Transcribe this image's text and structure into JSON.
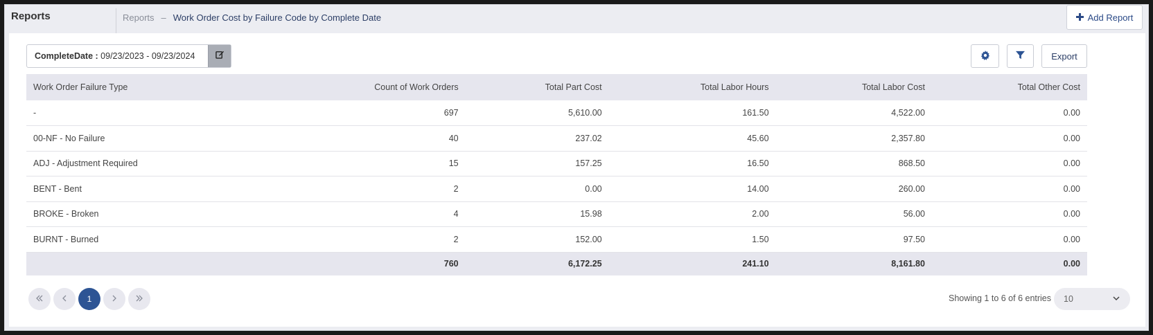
{
  "header": {
    "app_title": "Reports",
    "breadcrumb_root": "Reports",
    "breadcrumb_sep": "–",
    "breadcrumb_current": "Work Order Cost by Failure Code by Complete Date",
    "add_report_label": "Add Report",
    "add_icon": "plus-icon"
  },
  "toolbar": {
    "date_key": "CompleteDate :",
    "date_range": "09/23/2023 - 09/23/2024",
    "edit_icon": "edit-icon",
    "settings_icon": "gear-icon",
    "filter_icon": "filter-icon",
    "export_label": "Export"
  },
  "table": {
    "headers": [
      "Work Order Failure Type",
      "Count of Work Orders",
      "Total Part Cost",
      "Total Labor Hours",
      "Total Labor Cost",
      "Total Other Cost"
    ],
    "rows": [
      [
        "-",
        "697",
        "5,610.00",
        "161.50",
        "4,522.00",
        "0.00"
      ],
      [
        "00-NF - No Failure",
        "40",
        "237.02",
        "45.60",
        "2,357.80",
        "0.00"
      ],
      [
        "ADJ - Adjustment Required",
        "15",
        "157.25",
        "16.50",
        "868.50",
        "0.00"
      ],
      [
        "BENT - Bent",
        "2",
        "0.00",
        "14.00",
        "260.00",
        "0.00"
      ],
      [
        "BROKE - Broken",
        "4",
        "15.98",
        "2.00",
        "56.00",
        "0.00"
      ],
      [
        "BURNT - Burned",
        "2",
        "152.00",
        "1.50",
        "97.50",
        "0.00"
      ]
    ],
    "totals": [
      "",
      "760",
      "6,172.25",
      "241.10",
      "8,161.80",
      "0.00"
    ]
  },
  "pagination": {
    "current_page": "1",
    "entries_text": "Showing 1 to 6 of 6 entries",
    "page_size": "10"
  },
  "colors": {
    "accent": "#2d5494",
    "header_bg": "#e6e6ee"
  }
}
